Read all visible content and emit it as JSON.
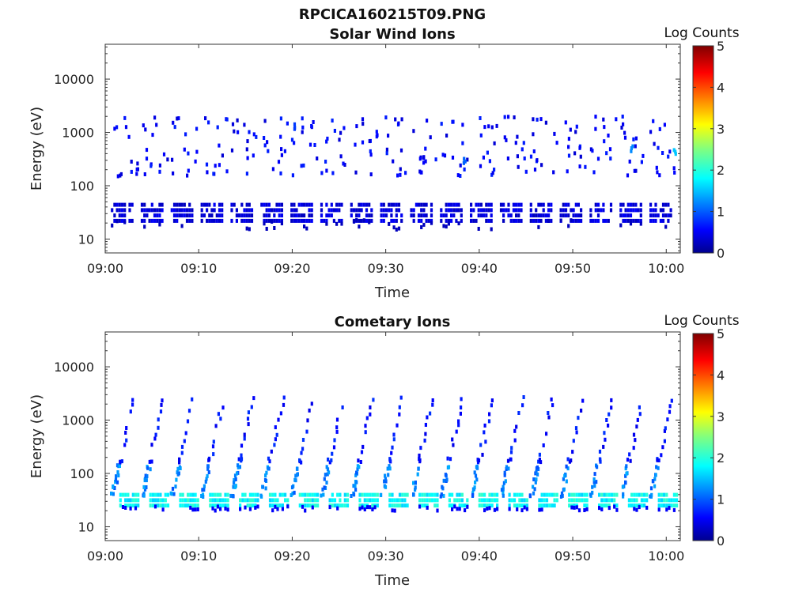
{
  "figure_title": "RPCICA160215T09.PNG",
  "chart_data": [
    {
      "type": "heatmap",
      "title": "Solar Wind Ions",
      "xlabel": "Time",
      "ylabel": "Energy (eV)",
      "xticks": [
        "09:00",
        "09:10",
        "09:20",
        "09:30",
        "09:40",
        "09:50",
        "10:00"
      ],
      "yticks": [
        "10",
        "100",
        "1000",
        "10000"
      ],
      "xlim_minutes": [
        0,
        61.5
      ],
      "ylim": [
        5.5,
        45000
      ],
      "yscale": "log",
      "colorbar": {
        "label": "Log Counts",
        "min": 0,
        "max": 5,
        "ticks": [
          "0",
          "1",
          "2",
          "3",
          "4",
          "5"
        ],
        "colormap": "jet"
      },
      "scan_period_minutes": 3.2,
      "scan_start_minutes": 0.6,
      "scans": 19,
      "bands": [
        {
          "name": "low energy band",
          "emin": 22,
          "emax": 45,
          "log_counts": 0.3
        },
        {
          "name": "high energy scatter",
          "emin": 150,
          "emax": 2000,
          "log_counts": 0.4
        }
      ],
      "hotspots": [
        {
          "t": 20.2,
          "e": 1300,
          "log_counts": 0.9
        },
        {
          "t": 38.3,
          "e": 280,
          "log_counts": 1.1
        },
        {
          "t": 56.2,
          "e": 500,
          "log_counts": 1.3
        },
        {
          "t": 60.8,
          "e": 450,
          "log_counts": 1.6
        }
      ]
    },
    {
      "type": "heatmap",
      "title": "Cometary Ions",
      "xlabel": "Time",
      "ylabel": "Energy (eV)",
      "xticks": [
        "09:00",
        "09:10",
        "09:20",
        "09:30",
        "09:40",
        "09:50",
        "10:00"
      ],
      "yticks": [
        "10",
        "100",
        "1000",
        "10000"
      ],
      "xlim_minutes": [
        0,
        61.5
      ],
      "ylim": [
        5.5,
        45000
      ],
      "yscale": "log",
      "colorbar": {
        "label": "Log Counts",
        "min": 0,
        "max": 5,
        "ticks": [
          "0",
          "1",
          "2",
          "3",
          "4",
          "5"
        ],
        "colormap": "jet"
      },
      "scan_period_minutes": 3.2,
      "scan_start_minutes": 0.6,
      "scans": 19,
      "bands": [
        {
          "name": "core band",
          "emin": 25,
          "emax": 45,
          "log_counts": 1.9
        },
        {
          "name": "rising arc",
          "emin": 40,
          "emax": 2500,
          "log_counts": 0.5
        }
      ]
    }
  ]
}
